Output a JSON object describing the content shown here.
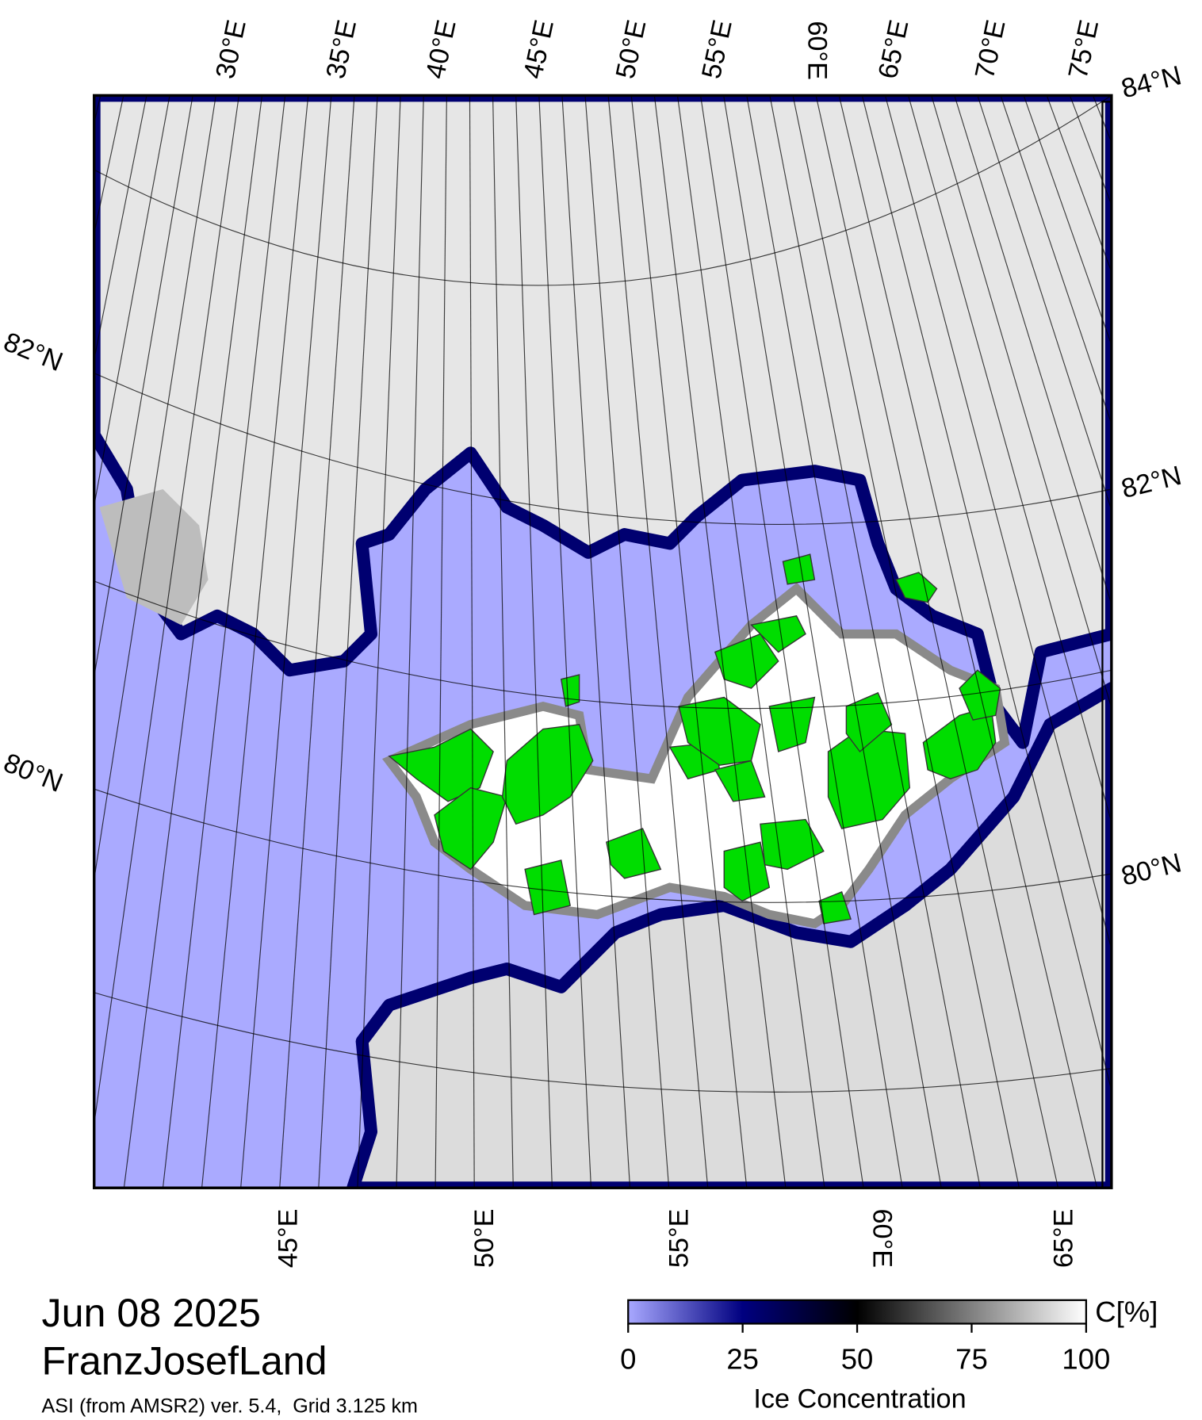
{
  "map": {
    "top_labels": [
      "30°E",
      "35°E",
      "40°E",
      "45°E",
      "50°E",
      "55°E",
      "60°E",
      "65°E",
      "70°E",
      "75°E"
    ],
    "bottom_labels": [
      "45°E",
      "50°E",
      "55°E",
      "60°E",
      "65°E"
    ],
    "left_labels": [
      "82°N",
      "80°N"
    ],
    "right_labels": [
      "84°N",
      "82°N",
      "80°N"
    ]
  },
  "info": {
    "date": "Jun 08 2025",
    "region": "FranzJosefLand",
    "source": "ASI (from AMSR2) ver. 5.4,  Grid 3.125 km"
  },
  "colorbar": {
    "title": "Ice Concentration",
    "unit": "C[%]",
    "range": [
      0,
      100
    ],
    "ticks": [
      0,
      25,
      50,
      75,
      100
    ]
  }
}
